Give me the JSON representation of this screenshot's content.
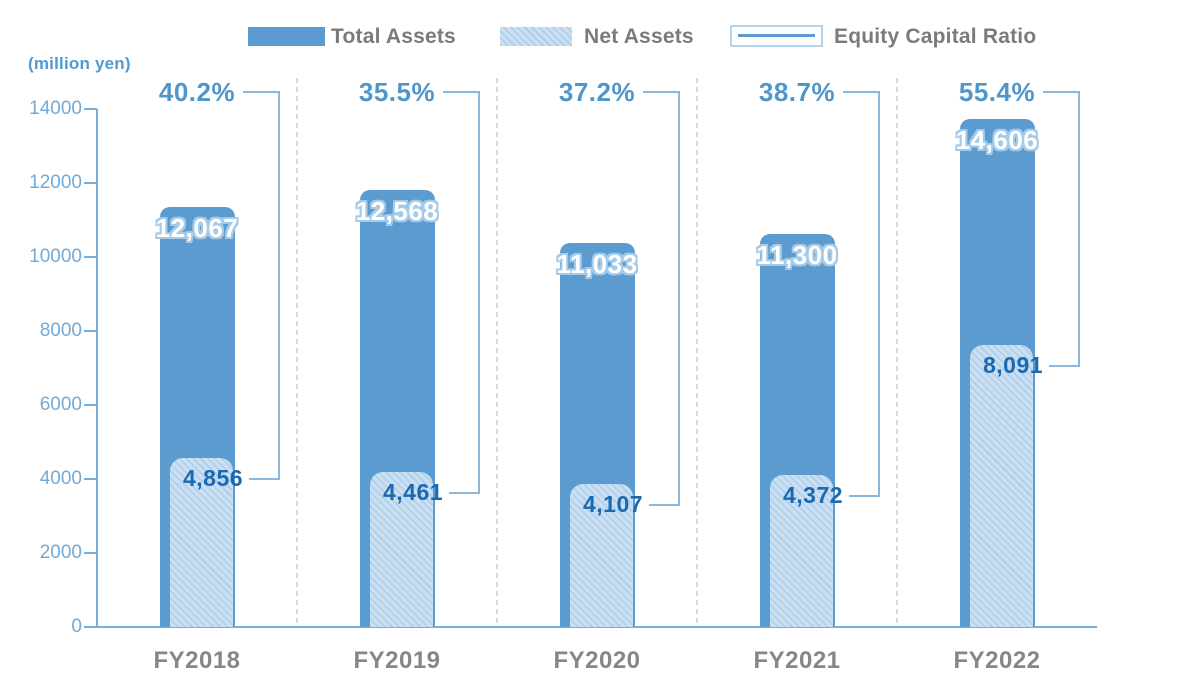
{
  "header": {
    "unit_label": "(million yen)"
  },
  "legend": {
    "items": [
      {
        "label": "Total Assets",
        "swatch": "solid-blue"
      },
      {
        "label": "Net Assets",
        "swatch": "hatched-light-blue"
      },
      {
        "label": "Equity Capital Ratio",
        "swatch": "outlined-box-with-line"
      }
    ]
  },
  "colors": {
    "total_assets_bar": "#5b9bcf",
    "net_assets_bar": "#cadff2",
    "net_assets_hatch": "rgba(91,155,207,0.25)",
    "percent_text": "#4e97cb",
    "net_value_text": "#1a6ab2",
    "total_value_text": "#ffffff",
    "total_value_outline": "#a6cbe9",
    "axis": "#79aed8",
    "tick_text": "#74a9d5",
    "category_text": "#868686",
    "legend_text": "#7b7b7b",
    "separator": "#d9d9d9",
    "bracket": "#8ab7de"
  },
  "chart_data": {
    "type": "bar",
    "title": "",
    "categories": [
      "FY2018",
      "FY2019",
      "FY2020",
      "FY2021",
      "FY2022"
    ],
    "series": [
      {
        "name": "Total Assets",
        "type": "bar",
        "values": [
          12067,
          12568,
          11033,
          11300,
          14606
        ],
        "labels": [
          "12,067",
          "12,568",
          "11,033",
          "11,300",
          "14,606"
        ]
      },
      {
        "name": "Net Assets",
        "type": "bar",
        "values": [
          4856,
          4461,
          4107,
          4372,
          8091
        ],
        "labels": [
          "4,856",
          "4,461",
          "4,107",
          "4,372",
          "8,091"
        ]
      },
      {
        "name": "Equity Capital Ratio",
        "type": "annotation-bracket",
        "unit": "%",
        "values": [
          40.2,
          35.5,
          37.2,
          38.7,
          55.4
        ],
        "labels": [
          "40.2%",
          "35.5%",
          "37.2%",
          "38.7%",
          "55.4%"
        ]
      }
    ],
    "xlabel": "",
    "ylabel": "(million yen)",
    "ylim": [
      0,
      14000
    ],
    "ytick_interval": 2000,
    "ytick_labels": [
      "0",
      "2000",
      "4000",
      "6000",
      "8000",
      "10000",
      "12000",
      "14000"
    ],
    "grid": false,
    "legend_position": "top"
  }
}
